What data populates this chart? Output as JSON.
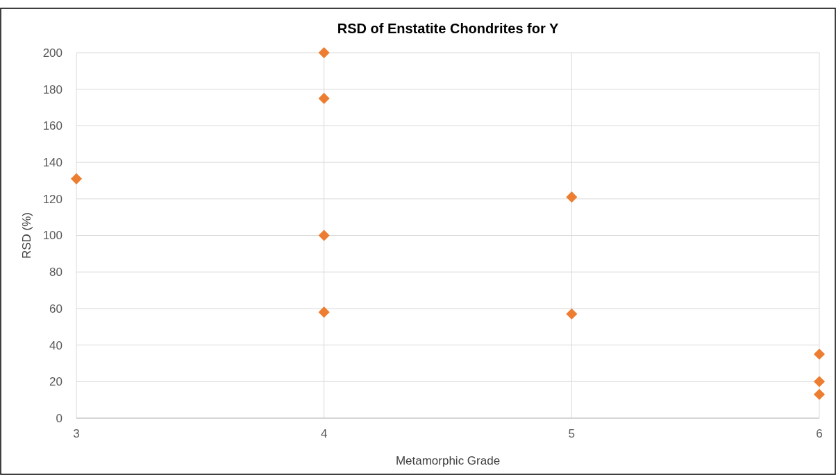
{
  "chart_data": {
    "type": "scatter",
    "title": "RSD of Enstatite Chondrites for Y",
    "xlabel": "Metamorphic Grade",
    "ylabel": "RSD (%)",
    "x": [
      3,
      4,
      4,
      4,
      4,
      5,
      5,
      6,
      6,
      6
    ],
    "values": [
      131,
      200,
      175,
      100,
      58,
      121,
      57,
      35,
      20,
      13
    ],
    "color": "#ed7d31",
    "marker": "diamond",
    "xlim": [
      3,
      6
    ],
    "xticks": [
      3,
      4,
      5,
      6
    ],
    "ylim": [
      0,
      200
    ],
    "yticks": [
      0,
      20,
      40,
      60,
      80,
      100,
      120,
      140,
      160,
      180,
      200
    ],
    "grid": true
  }
}
